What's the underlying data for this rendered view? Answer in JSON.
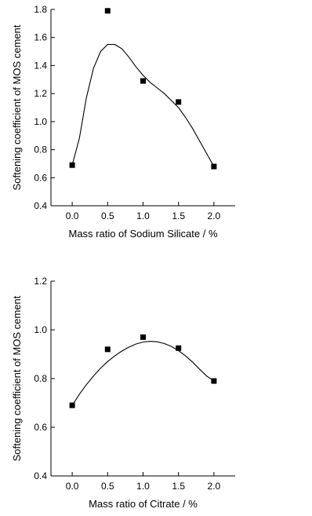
{
  "colors": {
    "axis": "#000000",
    "marker": "#000000",
    "curve": "#000000",
    "background": "#ffffff"
  },
  "chart_data": [
    {
      "type": "scatter",
      "xlabel": "Mass ratio of Sodium Silicate / %",
      "ylabel": "Softening coefficient of MOS cement",
      "xlim": [
        -0.3,
        2.3
      ],
      "ylim": [
        0.4,
        1.8
      ],
      "x_ticks": [
        "0.0",
        "0.5",
        "1.0",
        "1.5",
        "2.0"
      ],
      "y_ticks": [
        "0.4",
        "0.6",
        "0.8",
        "1.0",
        "1.2",
        "1.4",
        "1.6",
        "1.8"
      ],
      "grid": false,
      "series": [
        {
          "x": [
            0.0,
            0.5,
            1.0,
            1.5,
            2.0
          ],
          "y": [
            0.69,
            1.79,
            1.29,
            1.14,
            0.68
          ],
          "marker": "square"
        }
      ],
      "fit_curve": {
        "x": [
          0.0,
          0.1,
          0.2,
          0.3,
          0.4,
          0.5,
          0.6,
          0.7,
          0.8,
          0.9,
          1.0,
          1.1,
          1.2,
          1.3,
          1.4,
          1.5,
          1.6,
          1.7,
          1.8,
          1.9,
          2.0
        ],
        "y": [
          0.69,
          0.88,
          1.17,
          1.38,
          1.5,
          1.55,
          1.55,
          1.52,
          1.46,
          1.39,
          1.33,
          1.28,
          1.24,
          1.2,
          1.15,
          1.1,
          1.03,
          0.95,
          0.86,
          0.77,
          0.68
        ]
      }
    },
    {
      "type": "scatter",
      "xlabel": "Mass ratio of Citrate / %",
      "ylabel": "Softening coefficient of MOS cement",
      "xlim": [
        -0.3,
        2.3
      ],
      "ylim": [
        0.4,
        1.2
      ],
      "x_ticks": [
        "0.0",
        "0.5",
        "1.0",
        "1.5",
        "2.0"
      ],
      "y_ticks": [
        "0.4",
        "0.6",
        "0.8",
        "1.0",
        "1.2"
      ],
      "grid": false,
      "series": [
        {
          "x": [
            0.0,
            0.5,
            1.0,
            1.5,
            2.0
          ],
          "y": [
            0.69,
            0.92,
            0.97,
            0.925,
            0.79
          ],
          "marker": "square"
        }
      ],
      "fit_curve": {
        "x": [
          0.0,
          0.1,
          0.2,
          0.3,
          0.4,
          0.5,
          0.6,
          0.7,
          0.8,
          0.9,
          1.0,
          1.1,
          1.2,
          1.3,
          1.4,
          1.5,
          1.6,
          1.7,
          1.8,
          1.9,
          2.0
        ],
        "y": [
          0.69,
          0.735,
          0.775,
          0.81,
          0.843,
          0.87,
          0.893,
          0.913,
          0.929,
          0.942,
          0.95,
          0.953,
          0.951,
          0.944,
          0.932,
          0.915,
          0.893,
          0.867,
          0.838,
          0.81,
          0.79
        ]
      }
    }
  ]
}
